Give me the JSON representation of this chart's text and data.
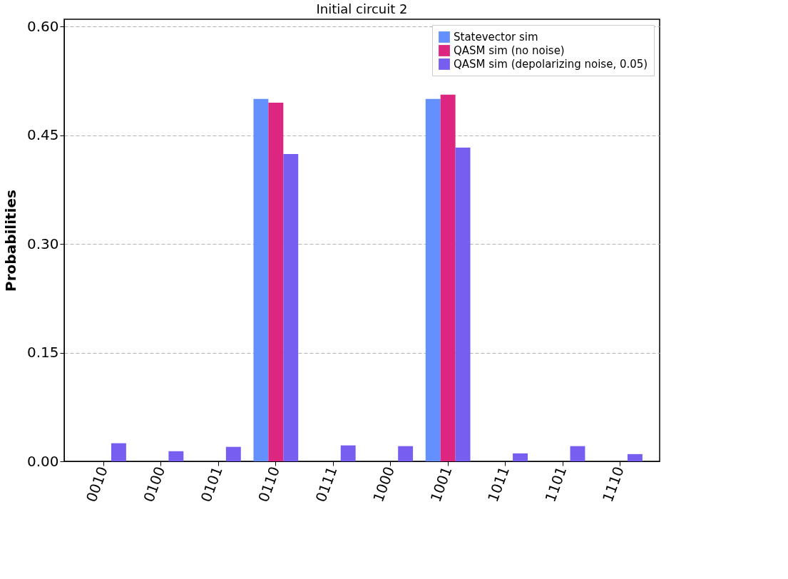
{
  "chart_data": {
    "type": "bar",
    "title": "Initial circuit 2",
    "ylabel": "Probabilities",
    "categories": [
      "0010",
      "0100",
      "0101",
      "0110",
      "0111",
      "1000",
      "1001",
      "1011",
      "1101",
      "1110"
    ],
    "series": [
      {
        "name": "Statevector sim",
        "color": "#648fff",
        "values": [
          null,
          null,
          null,
          0.5,
          null,
          null,
          0.5,
          null,
          null,
          null
        ]
      },
      {
        "name": "QASM sim (no noise)",
        "color": "#dc267f",
        "values": [
          null,
          null,
          null,
          0.495,
          null,
          null,
          0.506,
          null,
          null,
          null
        ]
      },
      {
        "name": "QASM sim (depolarizing noise, 0.05)",
        "color": "#785ef0",
        "values": [
          0.025,
          0.014,
          0.02,
          0.424,
          0.022,
          0.021,
          0.433,
          0.011,
          0.021,
          0.01
        ]
      }
    ],
    "ylim": [
      0,
      0.61
    ],
    "yticks": [
      {
        "value": 0,
        "label": "0.00"
      },
      {
        "value": 0.15,
        "label": "0.15"
      },
      {
        "value": 0.3,
        "label": "0.30"
      },
      {
        "value": 0.45,
        "label": "0.45"
      },
      {
        "value": 0.6,
        "label": "0.60"
      }
    ],
    "grid": "y",
    "legend": "top right"
  }
}
